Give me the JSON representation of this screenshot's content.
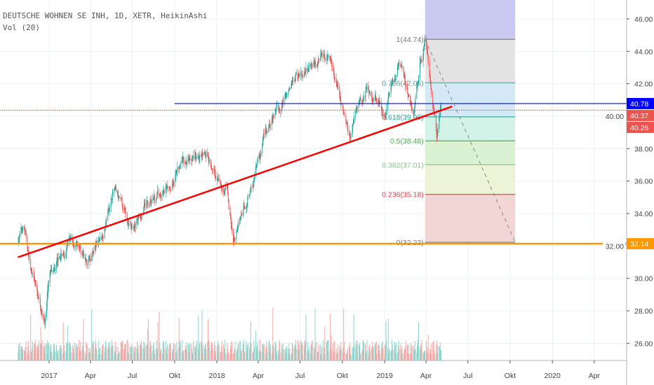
{
  "header": {
    "title": "DEUTSCHE WOHNEN SE INH, 1D, XETR, HeikinAshi",
    "volume_label": "Vol (20)"
  },
  "chart_data": {
    "type": "candlestick",
    "title": "DEUTSCHE WOHNEN SE INH, 1D, XETR, HeikinAshi",
    "y_ticks": [
      "46.00",
      "44.00",
      "42.00",
      "40.00",
      "38.00",
      "36.00",
      "34.00",
      "32.00",
      "30.00",
      "28.00",
      "26.00"
    ],
    "y_tick_values": [
      46,
      44,
      42,
      40,
      38,
      36,
      34,
      32,
      30,
      28,
      26
    ],
    "ylim": [
      24.9,
      47.2
    ],
    "x_ticks": [
      {
        "label": "2017",
        "date": "2017-01-01"
      },
      {
        "label": "Apr",
        "date": "2017-04-01"
      },
      {
        "label": "Jul",
        "date": "2017-07-01"
      },
      {
        "label": "Okt",
        "date": "2017-10-01"
      },
      {
        "label": "2018",
        "date": "2018-01-01"
      },
      {
        "label": "Apr",
        "date": "2018-04-01"
      },
      {
        "label": "Jul",
        "date": "2018-07-01"
      },
      {
        "label": "Okt",
        "date": "2018-10-01"
      },
      {
        "label": "2019",
        "date": "2019-01-01"
      },
      {
        "label": "Apr",
        "date": "2019-04-01"
      },
      {
        "label": "Jul",
        "date": "2019-07-01"
      },
      {
        "label": "Okt",
        "date": "2019-10-01"
      },
      {
        "label": "2020",
        "date": "2020-01-01"
      },
      {
        "label": "Apr",
        "date": "2020-04-01"
      }
    ],
    "price_path": [
      [
        "2016-10-25",
        32.5
      ],
      [
        "2016-11-06",
        33.3
      ],
      [
        "2016-11-24",
        30.0
      ],
      [
        "2016-12-22",
        27.4
      ],
      [
        "2017-01-01",
        30.0
      ],
      [
        "2017-02-15",
        32.5
      ],
      [
        "2017-03-25",
        31.0
      ],
      [
        "2017-04-30",
        33.0
      ],
      [
        "2017-05-20",
        35.5
      ],
      [
        "2017-06-30",
        33.0
      ],
      [
        "2017-07-30",
        34.5
      ],
      [
        "2017-09-15",
        35.5
      ],
      [
        "2017-10-15",
        37.0
      ],
      [
        "2017-11-15",
        37.3
      ],
      [
        "2017-12-15",
        37.5
      ],
      [
        "2018-01-01",
        36.0
      ],
      [
        "2018-01-22",
        35.5
      ],
      [
        "2018-02-05",
        32.3
      ],
      [
        "2018-02-25",
        34.0
      ],
      [
        "2018-03-20",
        36.0
      ],
      [
        "2018-04-12",
        38.5
      ],
      [
        "2018-05-05",
        40.0
      ],
      [
        "2018-06-05",
        41.5
      ],
      [
        "2018-06-20",
        42.5
      ],
      [
        "2018-07-20",
        43.0
      ],
      [
        "2018-08-28",
        44.0
      ],
      [
        "2018-09-12",
        42.5
      ],
      [
        "2018-10-05",
        40.0
      ],
      [
        "2018-10-16",
        38.5
      ],
      [
        "2018-10-29",
        40.5
      ],
      [
        "2018-11-22",
        41.5
      ],
      [
        "2018-12-22",
        41.0
      ],
      [
        "2018-12-30",
        39.5
      ],
      [
        "2019-01-14",
        41.5
      ],
      [
        "2019-01-29",
        43.5
      ],
      [
        "2019-02-13",
        42.0
      ],
      [
        "2019-03-05",
        40.0
      ],
      [
        "2019-03-17",
        43.0
      ],
      [
        "2019-03-30",
        44.7
      ],
      [
        "2019-04-10",
        42.0
      ],
      [
        "2019-04-18",
        40.0
      ],
      [
        "2019-04-24",
        38.5
      ],
      [
        "2019-04-29",
        40.0
      ],
      [
        "2019-05-03",
        40.3
      ]
    ],
    "last_price": "40.26",
    "price_labels": [
      {
        "value": "40.78",
        "color": "#0000ff"
      },
      {
        "value": "40.37",
        "color": "#ef5350"
      },
      {
        "value": "40.26",
        "color": "#ef5350"
      },
      {
        "value": "32.14",
        "color": "#ff9800"
      }
    ],
    "horizontal_lines": [
      {
        "price": 40.78,
        "color": "#0000ff",
        "style": "solid",
        "from": "2017-10-01"
      },
      {
        "price": 40.37,
        "color": "#ef5350",
        "style": "dotted"
      },
      {
        "price": 32.14,
        "color": "#ff9800",
        "style": "solid"
      }
    ],
    "trend_line": {
      "color": "#ff0000",
      "from": [
        "2016-10-25",
        31.3
      ],
      "to": [
        "2019-05-28",
        40.6
      ]
    },
    "fib_retracement": {
      "from": [
        "2019-03-30",
        44.74
      ],
      "to": [
        "2019-10-12",
        32.23
      ],
      "levels": [
        {
          "label": "1(44.74)",
          "ratio": 1,
          "price": 44.74,
          "color": "#787878",
          "fill": "#c9c9f2"
        },
        {
          "label": "0.786(42.06)",
          "ratio": 0.786,
          "price": 42.06,
          "color": "#5a9e9a",
          "fill": "#e3e3e3"
        },
        {
          "label": "0.618(39.96)",
          "ratio": 0.618,
          "price": 39.96,
          "color": "#26a69a",
          "fill": "#d4e8f5"
        },
        {
          "label": "0.5(38.48)",
          "ratio": 0.5,
          "price": 38.48,
          "color": "#4caf50",
          "fill": "#d3f2e8"
        },
        {
          "label": "0.382(37.01)",
          "ratio": 0.382,
          "price": 37.01,
          "color": "#81c784",
          "fill": "#d9f2d3"
        },
        {
          "label": "0.236(35.18)",
          "ratio": 0.236,
          "price": 35.18,
          "color": "#f23645",
          "fill": "#ecf3d6"
        },
        {
          "label": "0(32.23)",
          "ratio": 0,
          "price": 32.23,
          "color": "#787878",
          "fill": "#f2d6d6"
        }
      ]
    },
    "colors": {
      "up": "#26a69a",
      "down": "#ef5350",
      "vol_up": "#8fd3cb",
      "vol_down": "#f5a8a6"
    }
  }
}
